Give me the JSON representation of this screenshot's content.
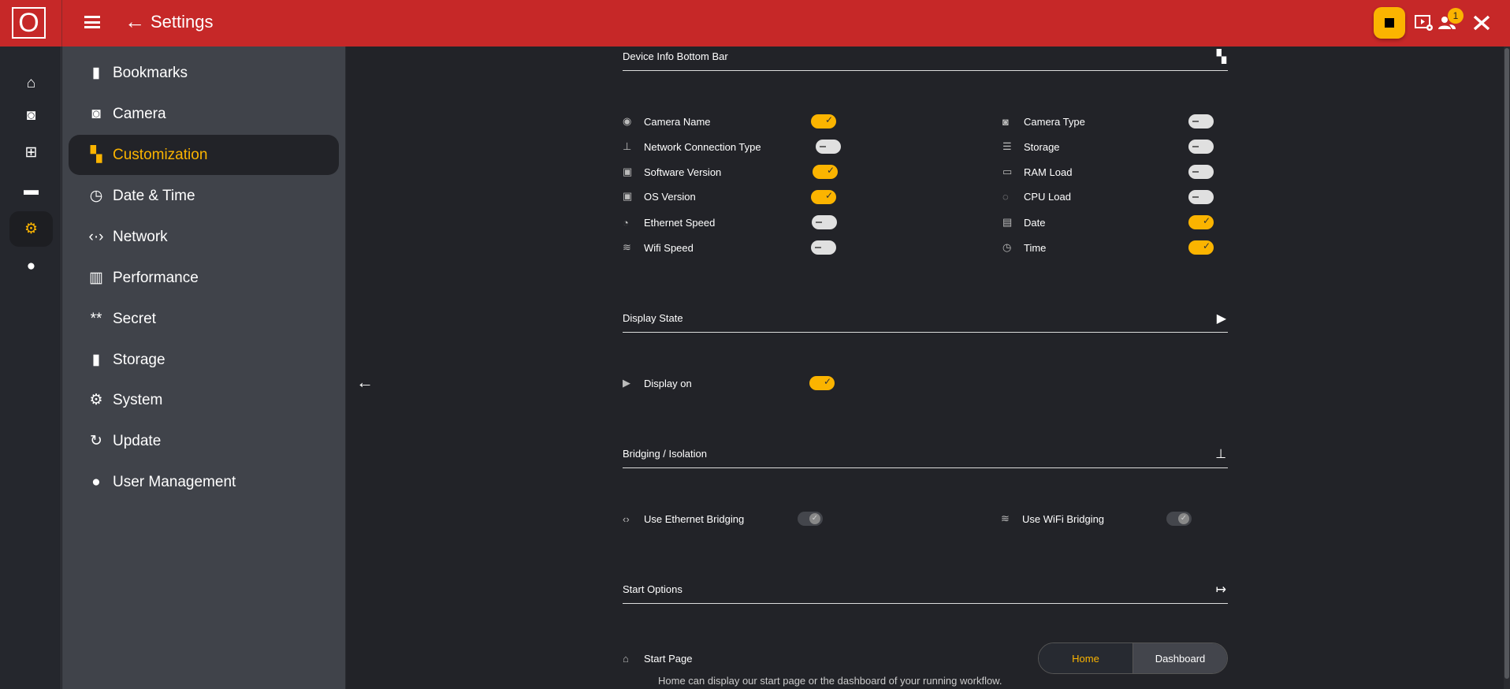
{
  "header": {
    "logo": "O",
    "title": "Settings",
    "notification_count": "1"
  },
  "rail": [
    {
      "icon": "home-icon"
    },
    {
      "icon": "camera-icon"
    },
    {
      "icon": "workflow-icon"
    },
    {
      "icon": "folder-icon"
    },
    {
      "icon": "gear-icon",
      "selected": true
    },
    {
      "icon": "alert-icon"
    }
  ],
  "sidebar": {
    "items": [
      {
        "label": "Bookmarks",
        "icon": "bookmark-icon"
      },
      {
        "label": "Camera",
        "icon": "camera-icon"
      },
      {
        "label": "Customization",
        "icon": "widgets-icon",
        "selected": true
      },
      {
        "label": "Date & Time",
        "icon": "clock-icon"
      },
      {
        "label": "Network",
        "icon": "network-icon"
      },
      {
        "label": "Performance",
        "icon": "chart-icon"
      },
      {
        "label": "Secret",
        "icon": "password-icon"
      },
      {
        "label": "Storage",
        "icon": "sd-card-icon"
      },
      {
        "label": "System",
        "icon": "gear-icon"
      },
      {
        "label": "Update",
        "icon": "update-icon"
      },
      {
        "label": "User Management",
        "icon": "users-icon"
      }
    ]
  },
  "sections": {
    "device_info": {
      "title": "Device Info Bottom Bar",
      "left": [
        {
          "label": "Camera Name",
          "on": true
        },
        {
          "label": "Network Connection Type",
          "on": false
        },
        {
          "label": "Software Version",
          "on": true
        },
        {
          "label": "OS Version",
          "on": true
        },
        {
          "label": "Ethernet Speed",
          "on": false
        },
        {
          "label": "Wifi Speed",
          "on": false
        }
      ],
      "right": [
        {
          "label": "Camera Type",
          "on": false
        },
        {
          "label": "Storage",
          "on": false
        },
        {
          "label": "RAM Load",
          "on": false
        },
        {
          "label": "CPU Load",
          "on": false
        },
        {
          "label": "Date",
          "on": true
        },
        {
          "label": "Time",
          "on": true
        }
      ]
    },
    "display_state": {
      "title": "Display State",
      "display_on": {
        "label": "Display on",
        "on": true
      }
    },
    "bridging": {
      "title": "Bridging / Isolation",
      "ethernet": {
        "label": "Use Ethernet Bridging",
        "on": true,
        "disabled": true
      },
      "wifi": {
        "label": "Use WiFi Bridging",
        "on": true,
        "disabled": true
      }
    },
    "start": {
      "title": "Start Options",
      "start_page": {
        "label": "Start Page",
        "options": [
          "Home",
          "Dashboard"
        ],
        "selected": "Home",
        "description": "Home can display our start page or the dashboard of your running workflow."
      }
    }
  },
  "colors": {
    "header": "#c62828",
    "accent": "#fbb400",
    "sidebar": "#40434a",
    "background": "#222328"
  }
}
